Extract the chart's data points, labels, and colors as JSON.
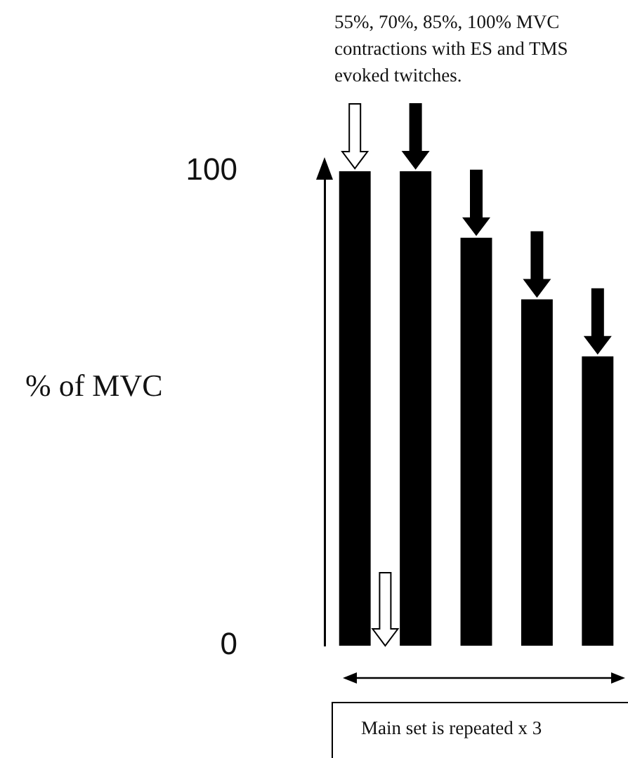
{
  "chart_data": {
    "type": "bar",
    "ylabel": "% of MVC",
    "categories": [
      null,
      null,
      null,
      null,
      null
    ],
    "values": [
      100,
      100,
      86,
      73,
      61
    ],
    "color": "#000000",
    "ylim": [
      0,
      100
    ],
    "yticks": [
      0,
      100
    ],
    "grid": false,
    "legend": false,
    "tick_labels": "y",
    "annotations": [
      "55%, 70%, 85%, 100% MVC contractions with ES and TMS evoked twitches.",
      "Main set is repeated x 3"
    ]
  }
}
